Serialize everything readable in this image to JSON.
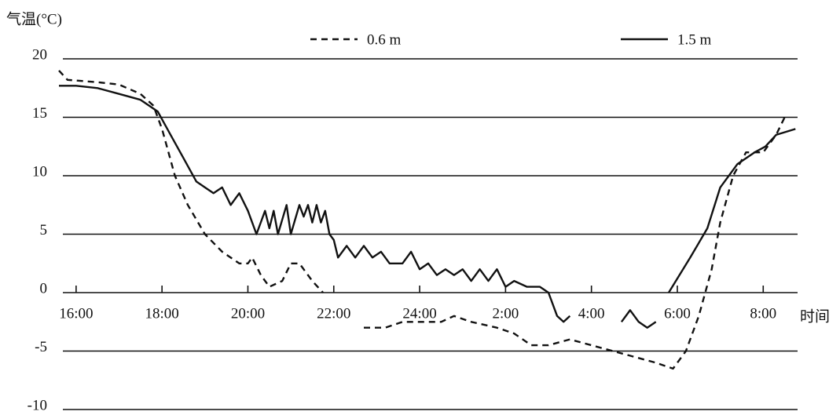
{
  "chart_data": {
    "type": "line",
    "ylabel": "气温(°C)",
    "xlabel": "时间",
    "xlim": [
      15.6,
      32.8
    ],
    "ylim": [
      -10,
      20
    ],
    "yticks": [
      20,
      15,
      10,
      5,
      0,
      -5,
      -10
    ],
    "xticks": [
      {
        "value": 16,
        "label": "16:00"
      },
      {
        "value": 18,
        "label": "18:00"
      },
      {
        "value": 20,
        "label": "20:00"
      },
      {
        "value": 22,
        "label": "22:00"
      },
      {
        "value": 24,
        "label": "24:00"
      },
      {
        "value": 26,
        "label": "2:00"
      },
      {
        "value": 28,
        "label": "4:00"
      },
      {
        "value": 30,
        "label": "6:00"
      },
      {
        "value": 32,
        "label": "8:00"
      }
    ],
    "grid": true,
    "series": [
      {
        "name": "0.6 m",
        "color": "#111111",
        "dashed": true,
        "x": [
          15.6,
          15.8,
          16.5,
          17,
          17.5,
          17.8,
          18,
          18.3,
          18.6,
          19,
          19.4,
          19.8,
          20,
          20.1,
          20.3,
          20.5,
          20.8,
          21,
          21.2,
          21.5,
          21.75,
          22.2,
          22.7,
          23.2,
          23.6,
          24,
          24.5,
          24.8,
          25.2,
          25.8,
          26.2,
          26.6,
          27,
          27.5,
          28,
          28.5,
          29,
          29.5,
          29.9,
          30.2,
          30.5,
          30.8,
          31,
          31.3,
          31.6,
          32,
          32.3,
          32.5
        ],
        "values": [
          19,
          18.2,
          18,
          17.8,
          17,
          16,
          14,
          10,
          7.5,
          5,
          3.5,
          2.5,
          2.5,
          3,
          1.5,
          0.5,
          1,
          2.5,
          2.5,
          1,
          0,
          null,
          -3,
          -3,
          -2.5,
          -2.5,
          -2.5,
          -2,
          -2.5,
          -3,
          -3.5,
          -4.5,
          -4.5,
          -4,
          -4.5,
          -5,
          -5.5,
          -6,
          -6.5,
          -5,
          -2,
          2,
          6,
          10,
          12,
          12,
          13.5,
          15
        ]
      },
      {
        "name": "1.5 m",
        "color": "#111111",
        "dashed": false,
        "x": [
          15.6,
          16,
          16.5,
          17,
          17.5,
          17.9,
          18.2,
          18.5,
          18.8,
          19,
          19.2,
          19.4,
          19.6,
          19.8,
          20,
          20.2,
          20.4,
          20.5,
          20.6,
          20.7,
          20.9,
          21,
          21.2,
          21.3,
          21.4,
          21.5,
          21.6,
          21.7,
          21.8,
          21.9,
          22,
          22.1,
          22.3,
          22.5,
          22.7,
          22.9,
          23.1,
          23.3,
          23.6,
          23.8,
          24,
          24.2,
          24.4,
          24.6,
          24.8,
          25,
          25.2,
          25.4,
          25.6,
          25.8,
          26,
          26.2,
          26.5,
          26.8,
          27,
          27.2,
          27.35,
          27.5,
          28.1,
          28.7,
          28.9,
          29.1,
          29.3,
          29.5,
          29.6,
          29.8,
          30.3,
          30.7,
          31,
          31.4,
          31.8,
          32.05,
          32.3,
          32.75
        ],
        "values": [
          17.7,
          17.7,
          17.5,
          17,
          16.5,
          15.5,
          13.5,
          11.5,
          9.5,
          9,
          8.5,
          9,
          7.5,
          8.5,
          7,
          5,
          7,
          5.5,
          7,
          5,
          7.5,
          5,
          7.5,
          6.5,
          7.5,
          6,
          7.5,
          6,
          7,
          5,
          4.5,
          3,
          4,
          3,
          4,
          3,
          3.5,
          2.5,
          2.5,
          3.5,
          2,
          2.5,
          1.5,
          2,
          1.5,
          2,
          1,
          2,
          1,
          2,
          0.5,
          1,
          0.5,
          0.5,
          0,
          -2,
          -2.5,
          -2,
          null,
          -2.5,
          -1.5,
          -2.5,
          -3,
          -2.5,
          null,
          0,
          3,
          5.5,
          9,
          11,
          12,
          12.5,
          13.5,
          14
        ]
      }
    ]
  }
}
